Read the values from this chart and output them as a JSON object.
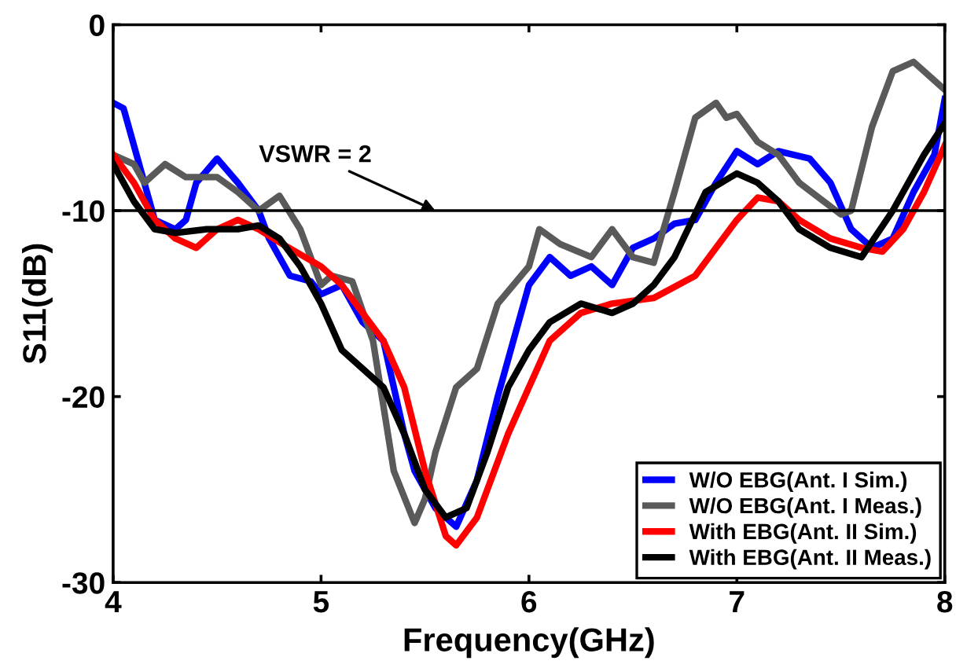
{
  "chart_data": {
    "type": "line",
    "xlabel": "Frequency(GHz)",
    "ylabel": "S11(dB)",
    "xlim": [
      4,
      8
    ],
    "xticks": [
      4,
      5,
      6,
      7,
      8
    ],
    "ylim": [
      -30,
      0
    ],
    "yticks": [
      -30,
      -20,
      -10,
      0
    ],
    "grid": false,
    "legend": "bottom right",
    "line_style": "solid",
    "marker": "none",
    "ref_lines": [
      {
        "axis": "y",
        "value": -10,
        "label": null,
        "color": "#000000"
      }
    ],
    "annotations": [
      {
        "text": "VSWR = 2",
        "x": 5.55,
        "y": -10
      }
    ],
    "series": [
      {
        "name": "W/O EBG(Ant. I Sim.)",
        "color": "#0000ff",
        "x": [
          4.0,
          4.05,
          4.1,
          4.2,
          4.3,
          4.35,
          4.4,
          4.5,
          4.6,
          4.7,
          4.75,
          4.85,
          4.95,
          5.0,
          5.1,
          5.2,
          5.3,
          5.4,
          5.45,
          5.55,
          5.65,
          5.75,
          5.85,
          5.95,
          6.0,
          6.1,
          6.2,
          6.3,
          6.4,
          6.5,
          6.6,
          6.7,
          6.8,
          6.9,
          7.0,
          7.1,
          7.2,
          7.35,
          7.45,
          7.55,
          7.65,
          7.75,
          7.85,
          7.95,
          8.0
        ],
        "values": [
          -4.2,
          -4.5,
          -6.5,
          -10.5,
          -11,
          -10.5,
          -8.5,
          -7.2,
          -8.5,
          -10,
          -11.5,
          -13.5,
          -13.8,
          -14.5,
          -14,
          -16,
          -17,
          -22,
          -24,
          -26,
          -27,
          -24.5,
          -20,
          -16,
          -14,
          -12.5,
          -13.5,
          -13,
          -14,
          -12,
          -11.5,
          -10.7,
          -10.5,
          -8.5,
          -6.8,
          -7.5,
          -6.8,
          -7.2,
          -8.5,
          -11,
          -12,
          -11.5,
          -9,
          -7,
          -4
        ]
      },
      {
        "name": "W/O EBG(Ant. I Meas.)",
        "color": "#5a5a5a",
        "x": [
          4.0,
          4.1,
          4.15,
          4.25,
          4.35,
          4.5,
          4.6,
          4.7,
          4.8,
          4.9,
          5.0,
          5.05,
          5.15,
          5.25,
          5.35,
          5.45,
          5.5,
          5.55,
          5.65,
          5.75,
          5.85,
          6.0,
          6.05,
          6.15,
          6.3,
          6.4,
          6.5,
          6.6,
          6.7,
          6.8,
          6.9,
          6.95,
          7.0,
          7.1,
          7.2,
          7.3,
          7.5,
          7.55,
          7.65,
          7.75,
          7.85,
          7.95,
          8.0
        ],
        "values": [
          -7,
          -7.5,
          -8.5,
          -7.5,
          -8.2,
          -8.2,
          -9,
          -10,
          -9.2,
          -11,
          -14,
          -13.5,
          -13.8,
          -17,
          -24,
          -26.8,
          -25.5,
          -23,
          -19.5,
          -18.5,
          -15,
          -13,
          -11,
          -11.8,
          -12.5,
          -11,
          -12.5,
          -12.8,
          -9,
          -5,
          -4.2,
          -5,
          -4.8,
          -6.3,
          -7,
          -8.5,
          -10.2,
          -10,
          -5.5,
          -2.5,
          -2,
          -3,
          -3.5
        ]
      },
      {
        "name": "With EBG(Ant. II Sim.)",
        "color": "#ff0000",
        "x": [
          4.0,
          4.1,
          4.2,
          4.3,
          4.4,
          4.5,
          4.6,
          4.7,
          4.8,
          5.0,
          5.1,
          5.2,
          5.3,
          5.4,
          5.5,
          5.6,
          5.65,
          5.75,
          5.9,
          6.1,
          6.25,
          6.4,
          6.6,
          6.8,
          6.9,
          7.0,
          7.1,
          7.2,
          7.3,
          7.45,
          7.6,
          7.7,
          7.8,
          7.9,
          8.0
        ],
        "values": [
          -7,
          -8.5,
          -10.5,
          -11.5,
          -12,
          -11,
          -10.5,
          -11,
          -11.7,
          -13,
          -14,
          -15.5,
          -17,
          -19.5,
          -24,
          -27.5,
          -28,
          -26.5,
          -22,
          -17,
          -15.5,
          -15,
          -14.7,
          -13.5,
          -12,
          -10.5,
          -9.3,
          -9.5,
          -10.5,
          -11.5,
          -12,
          -12.2,
          -11,
          -9,
          -6.5
        ]
      },
      {
        "name": "With EBG(Ant. II Meas.)",
        "color": "#000000",
        "x": [
          4.0,
          4.1,
          4.2,
          4.3,
          4.45,
          4.6,
          4.7,
          4.8,
          4.9,
          5.0,
          5.1,
          5.2,
          5.3,
          5.4,
          5.5,
          5.6,
          5.7,
          5.8,
          5.9,
          6.0,
          6.1,
          6.25,
          6.4,
          6.5,
          6.6,
          6.7,
          6.85,
          7.0,
          7.1,
          7.2,
          7.3,
          7.45,
          7.6,
          7.75,
          7.9,
          8.0
        ],
        "values": [
          -7.5,
          -9.5,
          -11,
          -11.2,
          -11,
          -11,
          -10.8,
          -11.5,
          -13,
          -15,
          -17.5,
          -18.5,
          -19.5,
          -22,
          -25,
          -26.5,
          -26,
          -23,
          -19.5,
          -17.5,
          -16,
          -15,
          -15.5,
          -15,
          -14,
          -12.5,
          -9,
          -8,
          -8.5,
          -9.5,
          -11,
          -12,
          -12.5,
          -10,
          -7,
          -5.3
        ]
      }
    ]
  }
}
